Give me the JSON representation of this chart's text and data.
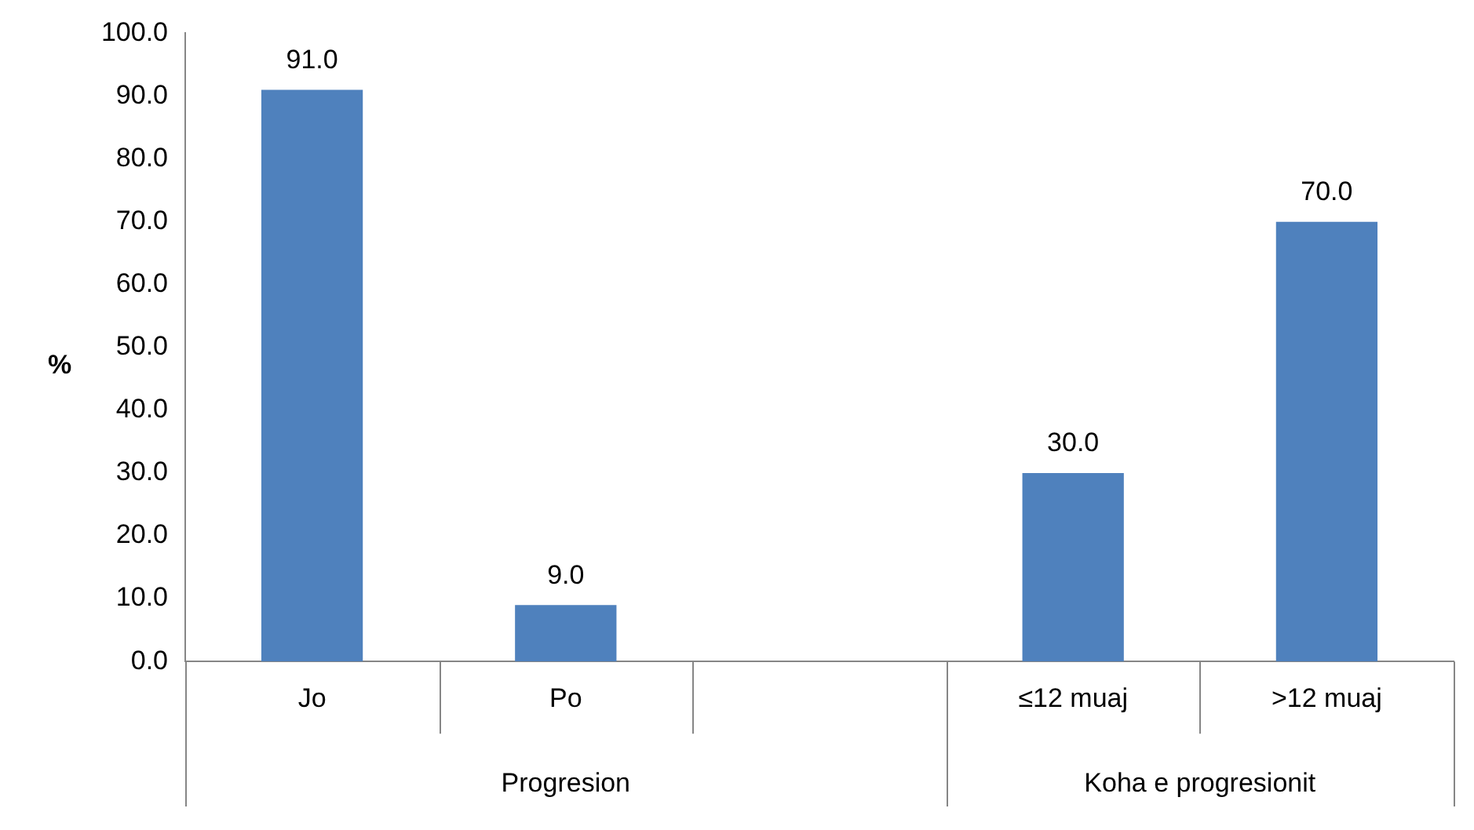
{
  "chart_data": {
    "type": "bar",
    "ylabel": "%",
    "categories": [
      "Jo",
      "Po",
      null,
      "≤12 muaj",
      ">12 muaj"
    ],
    "values": [
      91,
      9,
      null,
      30,
      70
    ],
    "value_labels": [
      "91.0",
      "9.0",
      null,
      "30.0",
      "70.0"
    ],
    "color": "#4f81bd",
    "ylim": [
      0,
      100
    ],
    "yticks": [
      {
        "value": 0,
        "label": "0.0"
      },
      {
        "value": 10,
        "label": "10.0"
      },
      {
        "value": 20,
        "label": "20.0"
      },
      {
        "value": 30,
        "label": "30.0"
      },
      {
        "value": 40,
        "label": "40.0"
      },
      {
        "value": 50,
        "label": "50.0"
      },
      {
        "value": 60,
        "label": "60.0"
      },
      {
        "value": 70,
        "label": "70.0"
      },
      {
        "value": 80,
        "label": "80.0"
      },
      {
        "value": 90,
        "label": "90.0"
      },
      {
        "value": 100,
        "label": "100.0"
      }
    ],
    "grid": false,
    "legend": false,
    "annotations": [
      "Progresion",
      "Koha e progresionit"
    ]
  }
}
